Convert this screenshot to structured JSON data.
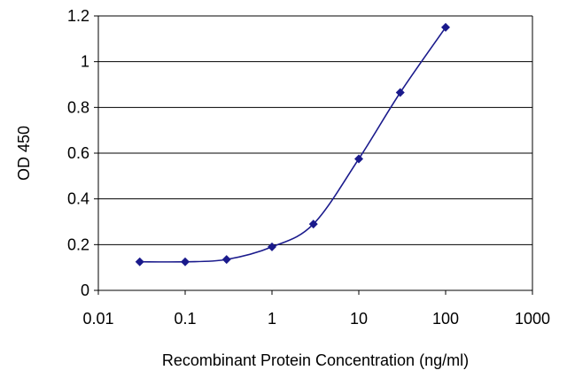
{
  "chart_data": {
    "type": "line",
    "xscale": "log",
    "xlim": [
      0.01,
      1000
    ],
    "ylim": [
      0,
      1.2
    ],
    "x_ticks": [
      "0.01",
      "0.1",
      "1",
      "10",
      "100",
      "1000"
    ],
    "y_ticks": [
      "0",
      "0.2",
      "0.4",
      "0.6",
      "0.8",
      "1",
      "1.2"
    ],
    "xlabel": "Recombinant Protein Concentration (ng/ml)",
    "ylabel": "OD 450",
    "grid": "horizontal",
    "series": [
      {
        "x": [
          0.03,
          0.1,
          0.3,
          1,
          3,
          10,
          30,
          100
        ],
        "y": [
          0.125,
          0.125,
          0.135,
          0.19,
          0.29,
          0.575,
          0.865,
          1.15
        ],
        "color": "#1a1a8c"
      }
    ]
  }
}
